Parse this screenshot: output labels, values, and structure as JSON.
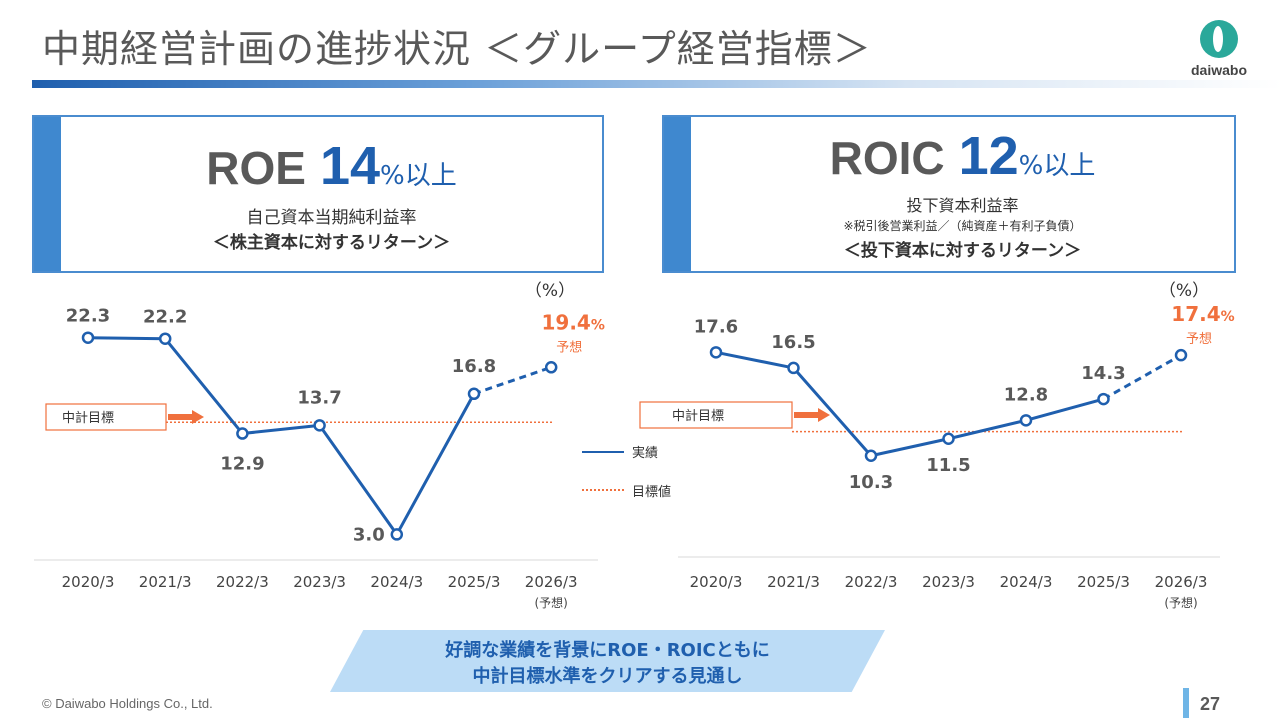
{
  "title": "中期経営計画の進捗状況 ＜グループ経営指標＞",
  "logo": {
    "text": "daiwabo"
  },
  "roe_box": {
    "name": "ROE",
    "value": "14",
    "suffix": "%以上",
    "line1": "自己資本当期純利益率",
    "line2": "＜株主資本に対するリターン＞"
  },
  "roic_box": {
    "name": "ROIC",
    "value": "12",
    "suffix": "%以上",
    "line1": "投下資本利益率",
    "note": "※税引後営業利益／（純資産＋有利子負債）",
    "line2": "＜投下資本に対するリターン＞"
  },
  "legend": {
    "actual": "実績",
    "target": "目標値"
  },
  "banner": {
    "line1": "好調な業績を背景にROE・ROICともに",
    "line2": "中計目標水準をクリアする見通し"
  },
  "footer": "© Daiwabo Holdings Co., Ltd.",
  "page_number": "27",
  "colors": {
    "line": "#1f5fae",
    "forecast": "#f0703d",
    "target": "#f0703d",
    "axis": "#d9d9d9",
    "label": "#595959"
  },
  "chart_data": [
    {
      "type": "line",
      "name": "ROE",
      "unit_label": "（%）",
      "categories": [
        "2020/3",
        "2021/3",
        "2022/3",
        "2023/3",
        "2024/3",
        "2025/3",
        "2026/3"
      ],
      "forecast_sublabel": "(予想)",
      "values": [
        22.3,
        22.2,
        12.9,
        13.7,
        3.0,
        16.8,
        19.4
      ],
      "value_labels": [
        "22.3",
        "22.2",
        "12.9",
        "13.7",
        "3.0",
        "16.8",
        "19.4%"
      ],
      "forecast_from_index": 5,
      "forecast_tag": "予想",
      "target_value": 14,
      "target_label": "中計目標",
      "ylim": [
        0,
        26
      ]
    },
    {
      "type": "line",
      "name": "ROIC",
      "unit_label": "（%）",
      "categories": [
        "2020/3",
        "2021/3",
        "2022/3",
        "2023/3",
        "2024/3",
        "2025/3",
        "2026/3"
      ],
      "forecast_sublabel": "(予想)",
      "values": [
        17.6,
        16.5,
        10.3,
        11.5,
        12.8,
        14.3,
        17.4
      ],
      "value_labels": [
        "17.6",
        "16.5",
        "10.3",
        "11.5",
        "12.8",
        "14.3",
        "17.4%"
      ],
      "forecast_from_index": 5,
      "forecast_tag": "予想",
      "target_value": 12,
      "target_label": "中計目標",
      "ylim": [
        4,
        22
      ]
    }
  ]
}
